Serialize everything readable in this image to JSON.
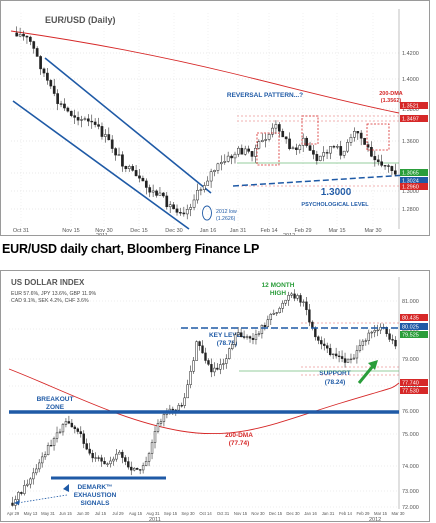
{
  "caption": "EUR/USD daily chart, Bloomberg Finance LP",
  "chart_data": [
    {
      "type": "candlestick",
      "title": "EUR/USD (Daily)",
      "y_ticks": [
        "1.4200",
        "1.4000",
        "1.3800",
        "1.3600",
        "1.3200",
        "1.3000",
        "1.2800"
      ],
      "x_ticks": [
        "Oct 31",
        "Nov 15",
        "Nov 30",
        "Dec 15",
        "Dec 30",
        "Jan 16",
        "Jan 31",
        "Feb 14",
        "Feb 29",
        "Mar 15",
        "Mar 30"
      ],
      "year_labels": [
        "2011",
        "2012"
      ],
      "price_tags": [
        {
          "label": "1.3521",
          "color": "#d62828"
        },
        {
          "label": "1.3497",
          "color": "#d62828"
        },
        {
          "label": "1.3065",
          "color": "#2a9d3a"
        },
        {
          "label": "1.3024",
          "color": "#1f5aa6"
        },
        {
          "label": "1.2960",
          "color": "#d62828"
        }
      ],
      "annotations": {
        "reversal": "REVERSAL PATTERN...?",
        "dma_title": "200-DMA",
        "dma_value": "(1.3562)",
        "level_value": "1.3000",
        "level_text": "PSYCHOLOGICAL LEVEL",
        "low_title": "2012 low",
        "low_value": "(1.2626)"
      }
    },
    {
      "type": "candlestick",
      "title": "US DOLLAR INDEX",
      "legend": [
        "EUR 57.6%, JPY 13.6%, GBP 11.9%",
        "CAD 9.1%, SEK 4.2%, CHF 3.6%"
      ],
      "y_ticks": [
        "81.000",
        "80.000",
        "79.000",
        "78.000",
        "76.000",
        "75.000",
        "74.000",
        "73.000",
        "72.000"
      ],
      "x_ticks": [
        "Apr 29",
        "May 13",
        "May 31",
        "Jun 15",
        "Jun 30",
        "Jul 15",
        "Jul 29",
        "Aug 15",
        "Aug 31",
        "Sep 15",
        "Sep 30",
        "Oct 14",
        "Oct 31",
        "Nov 15",
        "Nov 30",
        "Dec 15",
        "Dec 30",
        "Jan 16",
        "Jan 31",
        "Feb 14",
        "Feb 29",
        "Mar 15",
        "Mar 30"
      ],
      "year_labels": [
        "2011",
        "2012"
      ],
      "price_tags": [
        {
          "label": "80.435",
          "color": "#d62828"
        },
        {
          "label": "80.025",
          "color": "#1f5aa6"
        },
        {
          "label": "79.525",
          "color": "#2a9d3a"
        },
        {
          "label": "77.740",
          "color": "#d62828"
        },
        {
          "label": "77.530",
          "color": "#d62828"
        }
      ],
      "annotations": {
        "high_title": "12 MONTH",
        "high_sub": "HIGH",
        "key_title": "KEY LEVEL",
        "key_value": "(78.76)",
        "support_title": "SUPPORT",
        "support_value": "(78.24)",
        "breakout_1": "BREAKOUT",
        "breakout_2": "ZONE",
        "dma_title": "200-DMA",
        "dma_value": "(77.74)",
        "demark_1": "DEMARK™",
        "demark_2": "EXHAUSTION",
        "demark_3": "SIGNALS"
      }
    }
  ]
}
